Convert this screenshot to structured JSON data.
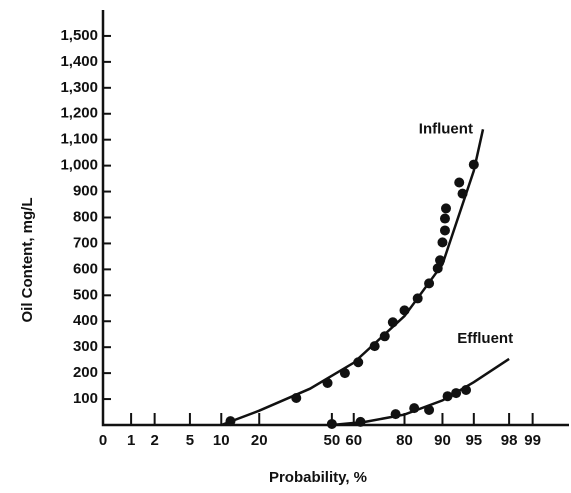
{
  "chart_data": {
    "type": "scatter",
    "x_label": "Probability, %",
    "y_label": "Oil Content, mg/L",
    "x_scale": "probability",
    "xlim": [
      0.4,
      99.7
    ],
    "ylim": [
      0,
      1600
    ],
    "xticks": [
      0,
      1,
      2,
      5,
      10,
      20,
      50,
      60,
      80,
      90,
      95,
      98,
      99
    ],
    "yticks": [
      100,
      200,
      300,
      400,
      500,
      600,
      700,
      800,
      900,
      {
        "value": 1000,
        "label": "1,000"
      },
      {
        "value": 1100,
        "label": "1,100"
      },
      {
        "value": 1200,
        "label": "1,200"
      },
      {
        "value": 1300,
        "label": "1,300"
      },
      {
        "value": 1400,
        "label": "1,400"
      },
      {
        "value": 1500,
        "label": "1,500"
      }
    ],
    "series": [
      {
        "name": "Influent",
        "color": "#111111",
        "x": [
          12,
          34,
          48,
          56,
          62,
          69,
          73,
          76,
          80,
          84,
          87,
          89,
          89.5,
          90,
          90.5,
          90.5,
          90.7,
          93,
          93.5,
          95
        ],
        "values": [
          15,
          104,
          162,
          200,
          242,
          304,
          342,
          396,
          442,
          488,
          546,
          604,
          635,
          704,
          750,
          796,
          835,
          935,
          892,
          1004
        ],
        "curve_x": [
          10,
          20,
          40,
          60,
          80,
          90,
          95,
          96
        ],
        "curve_values": [
          0,
          55,
          140,
          240,
          420,
          620,
          980,
          1140
        ]
      },
      {
        "name": "Effluent",
        "color": "#111111",
        "x": [
          50,
          63,
          77,
          83,
          87,
          91,
          92.5,
          94
        ],
        "values": [
          4,
          12,
          42,
          65,
          58,
          111,
          123,
          135
        ],
        "curve_x": [
          50,
          65,
          80,
          90,
          95,
          98
        ],
        "curve_values": [
          0,
          12,
          40,
          95,
          165,
          255
        ]
      }
    ]
  }
}
